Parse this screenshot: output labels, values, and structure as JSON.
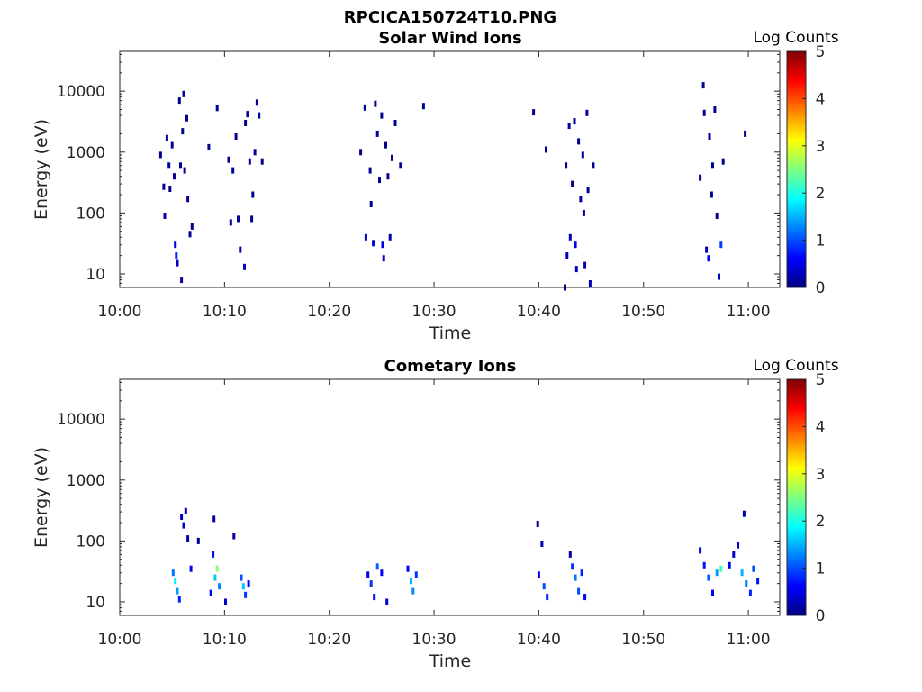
{
  "figure_title": "RPCICA150724T10.PNG",
  "colors": {
    "colormap": [
      "#00007f",
      "#0000ff",
      "#007fff",
      "#00ffff",
      "#7fff7f",
      "#ffff00",
      "#ff7f00",
      "#ff0000",
      "#7f0000"
    ],
    "frame": "#262626",
    "background": "#ffffff"
  },
  "chart_data": [
    {
      "type": "heatmap",
      "title": "Solar Wind Ions",
      "xlabel": "Time",
      "ylabel": "Energy (eV)",
      "yscale": "log",
      "ylim": [
        6,
        45000
      ],
      "xlim": [
        "10:00",
        "11:03"
      ],
      "x_ticks": [
        "10:00",
        "10:10",
        "10:20",
        "10:30",
        "10:40",
        "10:50",
        "11:00"
      ],
      "y_ticks": [
        "10",
        "100",
        "1000",
        "10000"
      ],
      "colorbar": {
        "label": "Log Counts",
        "ticks": [
          "0",
          "1",
          "2",
          "3",
          "4",
          "5"
        ],
        "range": [
          0,
          5
        ]
      },
      "points": [
        {
          "t": "10:03.9",
          "e": 900,
          "c": 0.1
        },
        {
          "t": "10:04.2",
          "e": 270,
          "c": 0.1
        },
        {
          "t": "10:04.3",
          "e": 90,
          "c": 0.2
        },
        {
          "t": "10:04.5",
          "e": 1700,
          "c": 0.1
        },
        {
          "t": "10:04.7",
          "e": 600,
          "c": 0.1
        },
        {
          "t": "10:04.8",
          "e": 250,
          "c": 0.1
        },
        {
          "t": "10:05.0",
          "e": 1300,
          "c": 0.1
        },
        {
          "t": "10:05.2",
          "e": 400,
          "c": 0.1
        },
        {
          "t": "10:05.3",
          "e": 30,
          "c": 0.5
        },
        {
          "t": "10:05.4",
          "e": 20,
          "c": 0.8
        },
        {
          "t": "10:05.5",
          "e": 15,
          "c": 0.3
        },
        {
          "t": "10:05.7",
          "e": 7000,
          "c": 0.1
        },
        {
          "t": "10:05.8",
          "e": 600,
          "c": 0.1
        },
        {
          "t": "10:05.9",
          "e": 8,
          "c": 0.2
        },
        {
          "t": "10:06.0",
          "e": 2200,
          "c": 0.1
        },
        {
          "t": "10:06.1",
          "e": 9000,
          "c": 0.1
        },
        {
          "t": "10:06.2",
          "e": 500,
          "c": 0.1
        },
        {
          "t": "10:06.4",
          "e": 3600,
          "c": 0.1
        },
        {
          "t": "10:06.5",
          "e": 170,
          "c": 0.1
        },
        {
          "t": "10:06.7",
          "e": 45,
          "c": 0.1
        },
        {
          "t": "10:06.9",
          "e": 60,
          "c": 0.1
        },
        {
          "t": "10:08.5",
          "e": 1200,
          "c": 0.1
        },
        {
          "t": "10:09.3",
          "e": 5300,
          "c": 0.1
        },
        {
          "t": "10:10.4",
          "e": 750,
          "c": 0.1
        },
        {
          "t": "10:10.6",
          "e": 70,
          "c": 0.1
        },
        {
          "t": "10:10.8",
          "e": 500,
          "c": 0.1
        },
        {
          "t": "10:11.1",
          "e": 1800,
          "c": 0.1
        },
        {
          "t": "10:11.3",
          "e": 80,
          "c": 0.1
        },
        {
          "t": "10:11.5",
          "e": 25,
          "c": 0.2
        },
        {
          "t": "10:11.9",
          "e": 13,
          "c": 0.4
        },
        {
          "t": "10:12.0",
          "e": 3000,
          "c": 0.1
        },
        {
          "t": "10:12.2",
          "e": 4200,
          "c": 0.1
        },
        {
          "t": "10:12.4",
          "e": 700,
          "c": 0.1
        },
        {
          "t": "10:12.6",
          "e": 80,
          "c": 0.1
        },
        {
          "t": "10:12.7",
          "e": 200,
          "c": 0.1
        },
        {
          "t": "10:12.9",
          "e": 1000,
          "c": 0.1
        },
        {
          "t": "10:13.1",
          "e": 6500,
          "c": 0.1
        },
        {
          "t": "10:13.3",
          "e": 4000,
          "c": 0.1
        },
        {
          "t": "10:13.6",
          "e": 700,
          "c": 0.1
        },
        {
          "t": "10:23.0",
          "e": 1000,
          "c": 0.1
        },
        {
          "t": "10:23.4",
          "e": 5400,
          "c": 0.1
        },
        {
          "t": "10:23.5",
          "e": 40,
          "c": 0.3
        },
        {
          "t": "10:23.9",
          "e": 500,
          "c": 0.1
        },
        {
          "t": "10:24.0",
          "e": 140,
          "c": 0.1
        },
        {
          "t": "10:24.2",
          "e": 32,
          "c": 0.4
        },
        {
          "t": "10:24.4",
          "e": 6200,
          "c": 0.1
        },
        {
          "t": "10:24.6",
          "e": 2000,
          "c": 0.1
        },
        {
          "t": "10:24.8",
          "e": 350,
          "c": 0.1
        },
        {
          "t": "10:25.0",
          "e": 4000,
          "c": 0.1
        },
        {
          "t": "10:25.1",
          "e": 30,
          "c": 0.5
        },
        {
          "t": "10:25.2",
          "e": 18,
          "c": 0.4
        },
        {
          "t": "10:25.4",
          "e": 1300,
          "c": 0.1
        },
        {
          "t": "10:25.6",
          "e": 400,
          "c": 0.1
        },
        {
          "t": "10:25.8",
          "e": 40,
          "c": 0.2
        },
        {
          "t": "10:26.0",
          "e": 800,
          "c": 0.1
        },
        {
          "t": "10:26.3",
          "e": 3000,
          "c": 0.1
        },
        {
          "t": "10:26.8",
          "e": 600,
          "c": 0.1
        },
        {
          "t": "10:29.0",
          "e": 5700,
          "c": 0.1
        },
        {
          "t": "10:39.5",
          "e": 4500,
          "c": 0.1
        },
        {
          "t": "10:40.7",
          "e": 1100,
          "c": 0.1
        },
        {
          "t": "10:42.5",
          "e": 6,
          "c": 0.1
        },
        {
          "t": "10:42.6",
          "e": 600,
          "c": 0.1
        },
        {
          "t": "10:42.7",
          "e": 20,
          "c": 0.3
        },
        {
          "t": "10:42.9",
          "e": 2700,
          "c": 0.1
        },
        {
          "t": "10:43.0",
          "e": 40,
          "c": 0.3
        },
        {
          "t": "10:43.2",
          "e": 300,
          "c": 0.1
        },
        {
          "t": "10:43.4",
          "e": 3200,
          "c": 0.1
        },
        {
          "t": "10:43.5",
          "e": 30,
          "c": 0.5
        },
        {
          "t": "10:43.6",
          "e": 12,
          "c": 0.4
        },
        {
          "t": "10:43.8",
          "e": 1500,
          "c": 0.1
        },
        {
          "t": "10:44.0",
          "e": 170,
          "c": 0.1
        },
        {
          "t": "10:44.2",
          "e": 900,
          "c": 0.1
        },
        {
          "t": "10:44.3",
          "e": 100,
          "c": 0.1
        },
        {
          "t": "10:44.4",
          "e": 14,
          "c": 0.3
        },
        {
          "t": "10:44.6",
          "e": 4400,
          "c": 0.1
        },
        {
          "t": "10:44.7",
          "e": 240,
          "c": 0.1
        },
        {
          "t": "10:44.9",
          "e": 7,
          "c": 0.3
        },
        {
          "t": "10:45.2",
          "e": 600,
          "c": 0.1
        },
        {
          "t": "10:55.4",
          "e": 380,
          "c": 0.1
        },
        {
          "t": "10:55.7",
          "e": 12500,
          "c": 0.1
        },
        {
          "t": "10:55.8",
          "e": 4400,
          "c": 0.1
        },
        {
          "t": "10:56.0",
          "e": 25,
          "c": 0.3
        },
        {
          "t": "10:56.2",
          "e": 18,
          "c": 0.6
        },
        {
          "t": "10:56.3",
          "e": 1800,
          "c": 0.1
        },
        {
          "t": "10:56.5",
          "e": 200,
          "c": 0.1
        },
        {
          "t": "10:56.6",
          "e": 600,
          "c": 0.1
        },
        {
          "t": "10:56.8",
          "e": 5000,
          "c": 0.1
        },
        {
          "t": "10:57.0",
          "e": 90,
          "c": 0.1
        },
        {
          "t": "10:57.2",
          "e": 9,
          "c": 0.3
        },
        {
          "t": "10:57.4",
          "e": 30,
          "c": 0.9
        },
        {
          "t": "10:57.6",
          "e": 700,
          "c": 0.1
        },
        {
          "t": "10:59.7",
          "e": 2000,
          "c": 0.1
        }
      ]
    },
    {
      "type": "heatmap",
      "title": "Cometary Ions",
      "xlabel": "Time",
      "ylabel": "Energy (eV)",
      "yscale": "log",
      "ylim": [
        6,
        45000
      ],
      "xlim": [
        "10:00",
        "11:03"
      ],
      "x_ticks": [
        "10:00",
        "10:10",
        "10:20",
        "10:30",
        "10:40",
        "10:50",
        "11:00"
      ],
      "y_ticks": [
        "10",
        "100",
        "1000",
        "10000"
      ],
      "colorbar": {
        "label": "Log Counts",
        "ticks": [
          "0",
          "1",
          "2",
          "3",
          "4",
          "5"
        ],
        "range": [
          0,
          5
        ]
      },
      "points": [
        {
          "t": "10:05.1",
          "e": 30,
          "c": 1.2
        },
        {
          "t": "10:05.3",
          "e": 22,
          "c": 1.8
        },
        {
          "t": "10:05.5",
          "e": 15,
          "c": 1.4
        },
        {
          "t": "10:05.7",
          "e": 11,
          "c": 0.8
        },
        {
          "t": "10:05.9",
          "e": 250,
          "c": 0.3
        },
        {
          "t": "10:06.1",
          "e": 180,
          "c": 0.4
        },
        {
          "t": "10:06.3",
          "e": 310,
          "c": 0.3
        },
        {
          "t": "10:06.5",
          "e": 110,
          "c": 0.2
        },
        {
          "t": "10:06.8",
          "e": 35,
          "c": 0.5
        },
        {
          "t": "10:07.5",
          "e": 100,
          "c": 0.1
        },
        {
          "t": "10:08.7",
          "e": 14,
          "c": 0.6
        },
        {
          "t": "10:08.9",
          "e": 60,
          "c": 0.7
        },
        {
          "t": "10:09.0",
          "e": 230,
          "c": 0.2
        },
        {
          "t": "10:09.1",
          "e": 25,
          "c": 1.6
        },
        {
          "t": "10:09.3",
          "e": 35,
          "c": 2.6
        },
        {
          "t": "10:09.5",
          "e": 18,
          "c": 1.3
        },
        {
          "t": "10:10.1",
          "e": 10,
          "c": 0.4
        },
        {
          "t": "10:10.9",
          "e": 120,
          "c": 0.2
        },
        {
          "t": "10:11.6",
          "e": 25,
          "c": 1.0
        },
        {
          "t": "10:11.8",
          "e": 18,
          "c": 1.6
        },
        {
          "t": "10:12.0",
          "e": 13,
          "c": 0.9
        },
        {
          "t": "10:12.3",
          "e": 20,
          "c": 0.6
        },
        {
          "t": "10:23.7",
          "e": 28,
          "c": 0.5
        },
        {
          "t": "10:24.0",
          "e": 20,
          "c": 0.9
        },
        {
          "t": "10:24.3",
          "e": 12,
          "c": 0.7
        },
        {
          "t": "10:24.6",
          "e": 38,
          "c": 1.1
        },
        {
          "t": "10:25.0",
          "e": 30,
          "c": 0.6
        },
        {
          "t": "10:25.5",
          "e": 10,
          "c": 0.4
        },
        {
          "t": "10:27.5",
          "e": 35,
          "c": 0.6
        },
        {
          "t": "10:27.8",
          "e": 22,
          "c": 1.5
        },
        {
          "t": "10:28.0",
          "e": 15,
          "c": 1.3
        },
        {
          "t": "10:28.3",
          "e": 28,
          "c": 0.9
        },
        {
          "t": "10:39.9",
          "e": 190,
          "c": 0.1
        },
        {
          "t": "10:40.0",
          "e": 28,
          "c": 0.6
        },
        {
          "t": "10:40.3",
          "e": 90,
          "c": 0.3
        },
        {
          "t": "10:40.5",
          "e": 18,
          "c": 1.0
        },
        {
          "t": "10:40.8",
          "e": 12,
          "c": 0.8
        },
        {
          "t": "10:43.0",
          "e": 60,
          "c": 0.2
        },
        {
          "t": "10:43.2",
          "e": 38,
          "c": 0.9
        },
        {
          "t": "10:43.5",
          "e": 25,
          "c": 1.2
        },
        {
          "t": "10:43.8",
          "e": 15,
          "c": 1.0
        },
        {
          "t": "10:44.1",
          "e": 30,
          "c": 0.8
        },
        {
          "t": "10:44.4",
          "e": 12,
          "c": 0.6
        },
        {
          "t": "10:55.4",
          "e": 70,
          "c": 0.5
        },
        {
          "t": "10:55.8",
          "e": 40,
          "c": 0.7
        },
        {
          "t": "10:56.2",
          "e": 25,
          "c": 1.1
        },
        {
          "t": "10:56.6",
          "e": 14,
          "c": 0.6
        },
        {
          "t": "10:57.0",
          "e": 30,
          "c": 1.4
        },
        {
          "t": "10:57.4",
          "e": 35,
          "c": 2.2
        },
        {
          "t": "10:58.2",
          "e": 40,
          "c": 0.6
        },
        {
          "t": "10:58.6",
          "e": 60,
          "c": 0.4
        },
        {
          "t": "10:59.0",
          "e": 85,
          "c": 0.3
        },
        {
          "t": "10:59.4",
          "e": 30,
          "c": 1.5
        },
        {
          "t": "10:59.6",
          "e": 280,
          "c": 0.2
        },
        {
          "t": "10:59.8",
          "e": 20,
          "c": 1.2
        },
        {
          "t": "11:00.2",
          "e": 14,
          "c": 0.8
        },
        {
          "t": "11:00.5",
          "e": 35,
          "c": 1.0
        },
        {
          "t": "11:00.9",
          "e": 22,
          "c": 0.7
        }
      ]
    }
  ]
}
